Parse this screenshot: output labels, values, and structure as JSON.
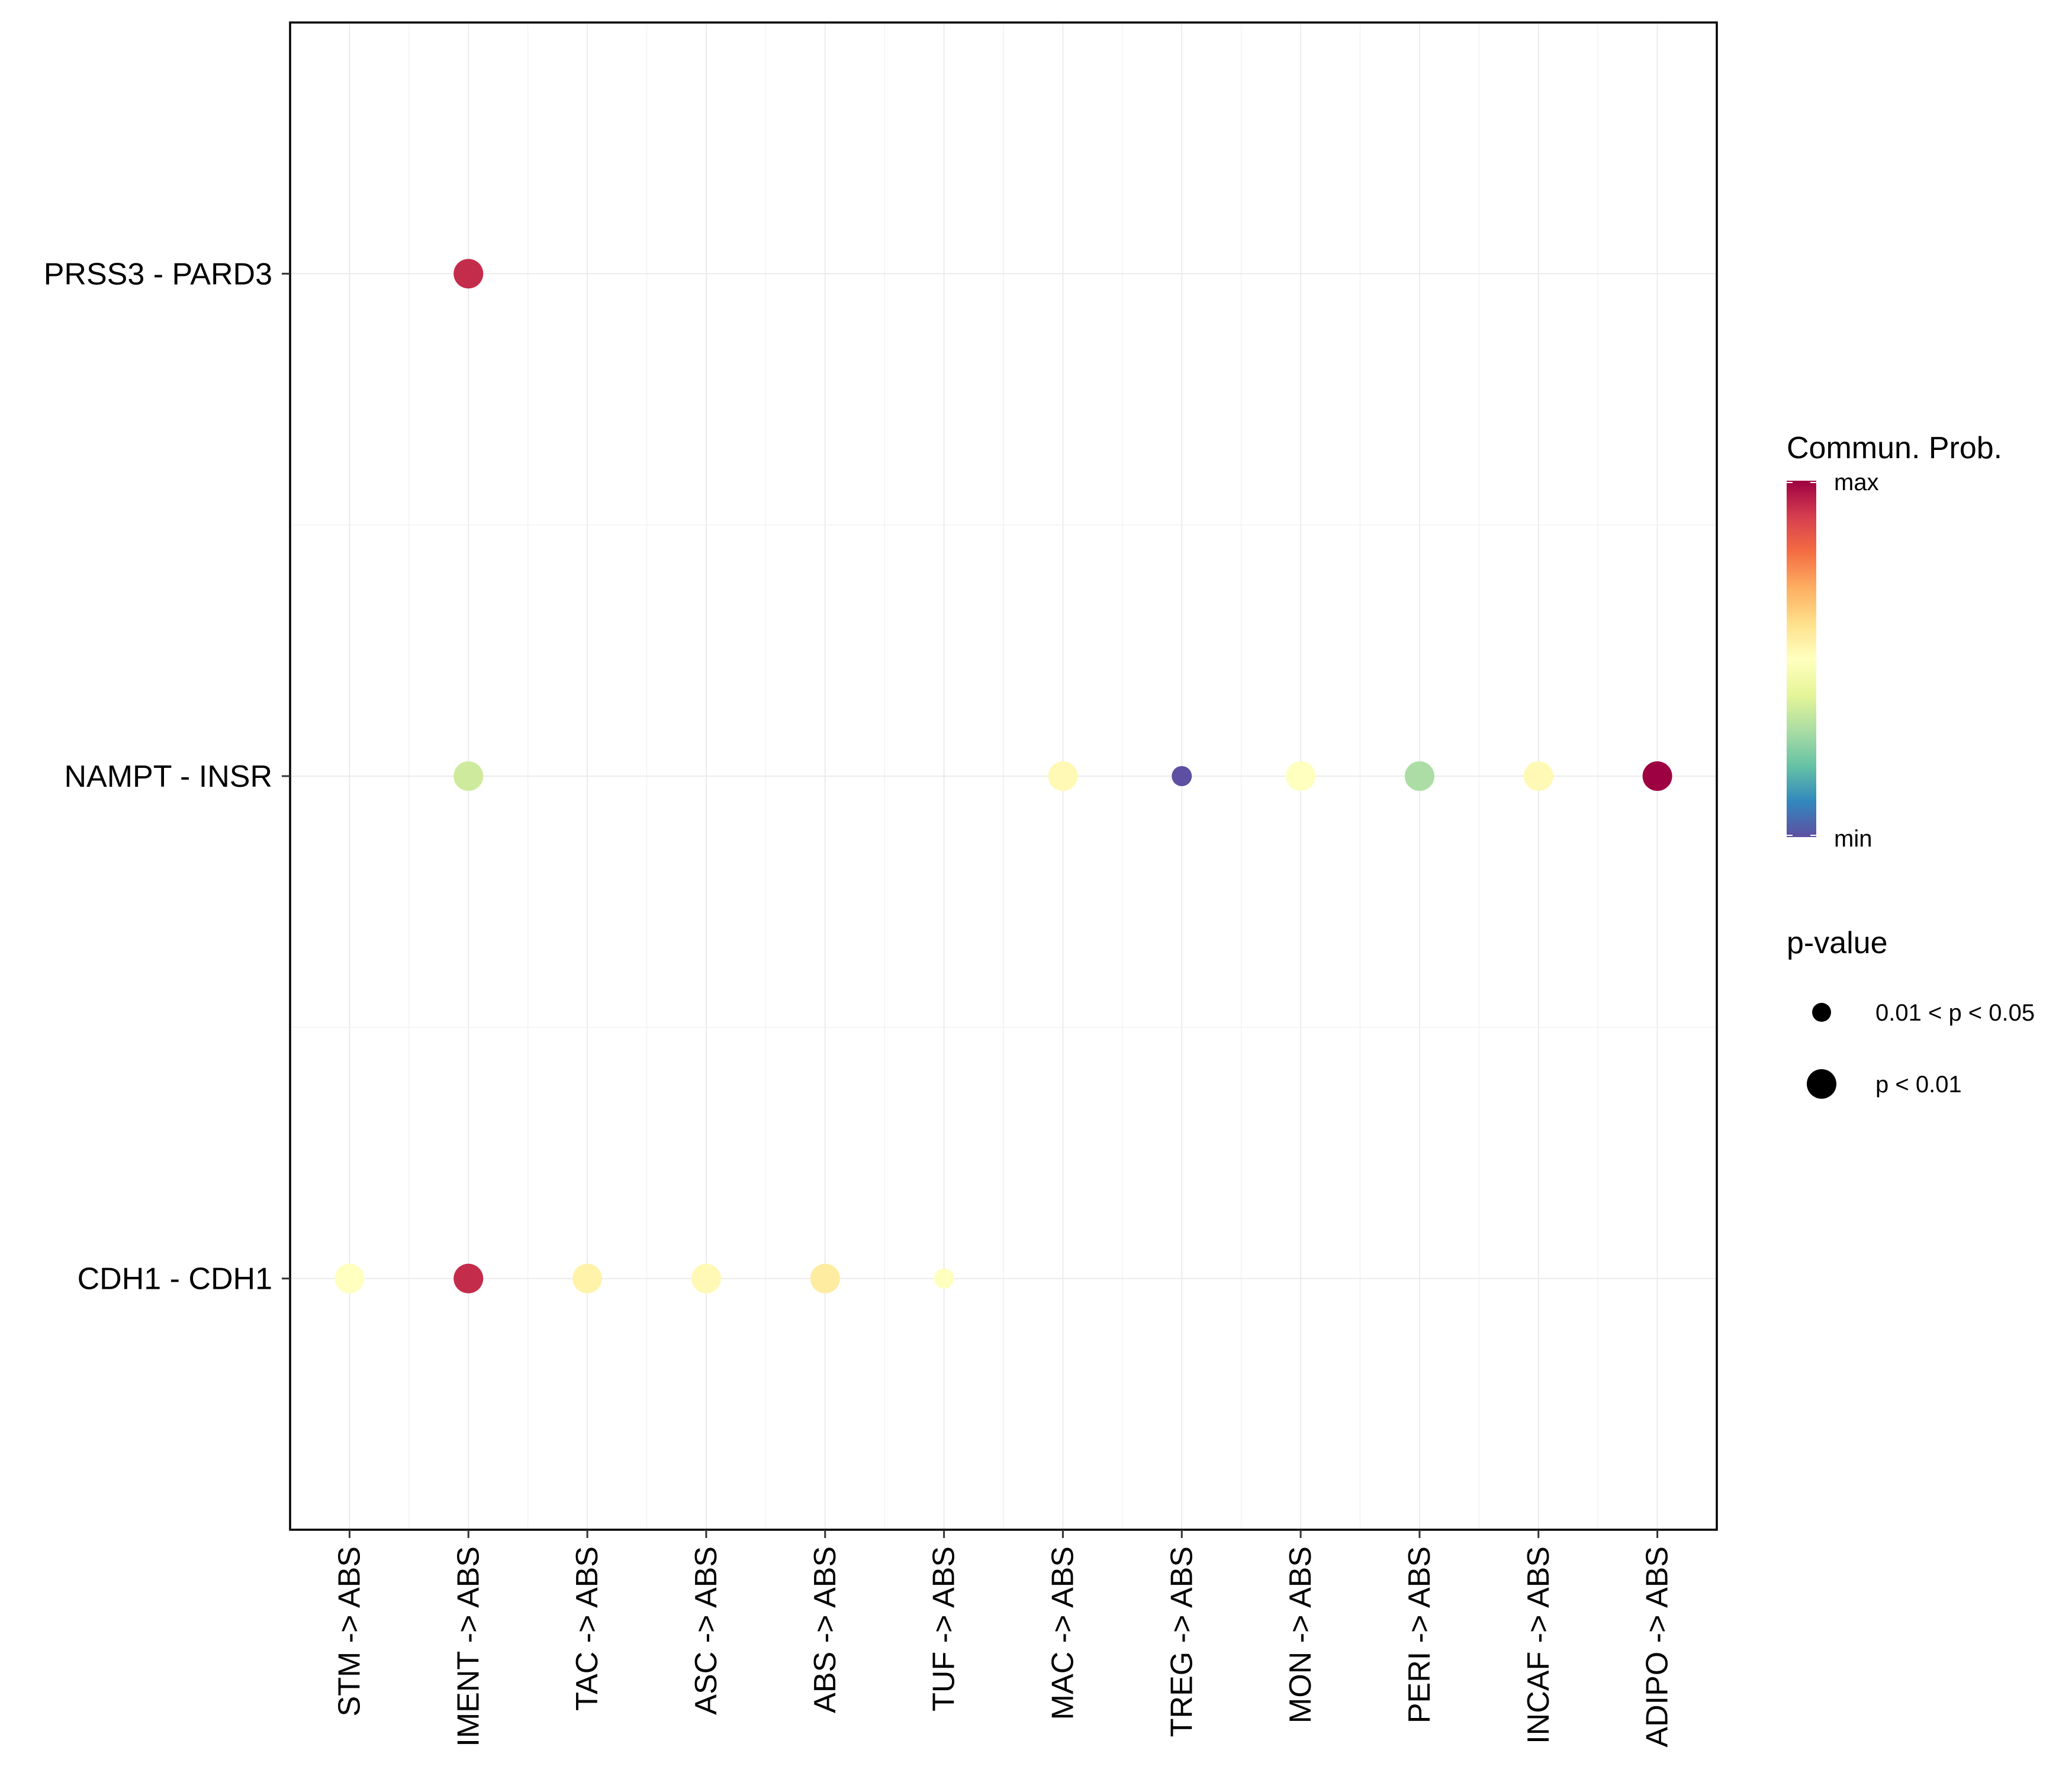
{
  "chart_data": {
    "type": "dot",
    "x_categories": [
      "STM -> ABS",
      "IMENT -> ABS",
      "TAC -> ABS",
      "ASC -> ABS",
      "ABS -> ABS",
      "TUF -> ABS",
      "MAC -> ABS",
      "TREG -> ABS",
      "MON -> ABS",
      "PERI -> ABS",
      "INCAF -> ABS",
      "ADIPO -> ABS"
    ],
    "y_categories": [
      "PRSS3 - PARD3",
      "NAMPT - INSR",
      "CDH1 - CDH1"
    ],
    "points": [
      {
        "pair": "PRSS3 - PARD3",
        "source_target": "IMENT -> ABS",
        "prob": 0.93,
        "pval": "p < 0.01"
      },
      {
        "pair": "NAMPT - INSR",
        "source_target": "IMENT -> ABS",
        "prob": 0.36,
        "pval": "p < 0.01"
      },
      {
        "pair": "NAMPT - INSR",
        "source_target": "MAC -> ABS",
        "prob": 0.52,
        "pval": "p < 0.01"
      },
      {
        "pair": "NAMPT - INSR",
        "source_target": "TREG -> ABS",
        "prob": 0.0,
        "pval": "0.01 < p < 0.05"
      },
      {
        "pair": "NAMPT - INSR",
        "source_target": "MON -> ABS",
        "prob": 0.5,
        "pval": "p < 0.01"
      },
      {
        "pair": "NAMPT - INSR",
        "source_target": "PERI -> ABS",
        "prob": 0.3,
        "pval": "p < 0.01"
      },
      {
        "pair": "NAMPT - INSR",
        "source_target": "INCAF -> ABS",
        "prob": 0.52,
        "pval": "p < 0.01"
      },
      {
        "pair": "NAMPT - INSR",
        "source_target": "ADIPO -> ABS",
        "prob": 1.0,
        "pval": "p < 0.01"
      },
      {
        "pair": "CDH1 - CDH1",
        "source_target": "STM -> ABS",
        "prob": 0.5,
        "pval": "p < 0.01"
      },
      {
        "pair": "CDH1 - CDH1",
        "source_target": "IMENT -> ABS",
        "prob": 0.93,
        "pval": "p < 0.01"
      },
      {
        "pair": "CDH1 - CDH1",
        "source_target": "TAC -> ABS",
        "prob": 0.54,
        "pval": "p < 0.01"
      },
      {
        "pair": "CDH1 - CDH1",
        "source_target": "ASC -> ABS",
        "prob": 0.52,
        "pval": "p < 0.01"
      },
      {
        "pair": "CDH1 - CDH1",
        "source_target": "ABS -> ABS",
        "prob": 0.56,
        "pval": "p < 0.01"
      },
      {
        "pair": "CDH1 - CDH1",
        "source_target": "TUF -> ABS",
        "prob": 0.5,
        "pval": "0.01 < p < 0.05"
      }
    ],
    "legend": {
      "color_title": "Commun. Prob.",
      "color_max_label": "max",
      "color_min_label": "min",
      "color_stops": [
        "#5E4FA2",
        "#3288BD",
        "#66C2A5",
        "#ABDDA4",
        "#E6F598",
        "#FFFFBF",
        "#FEE08B",
        "#FDAE61",
        "#F46D43",
        "#D53E4F",
        "#9E0142"
      ],
      "size_title": "p-value",
      "size_levels": [
        "0.01 < p < 0.05",
        "p < 0.01"
      ]
    }
  }
}
